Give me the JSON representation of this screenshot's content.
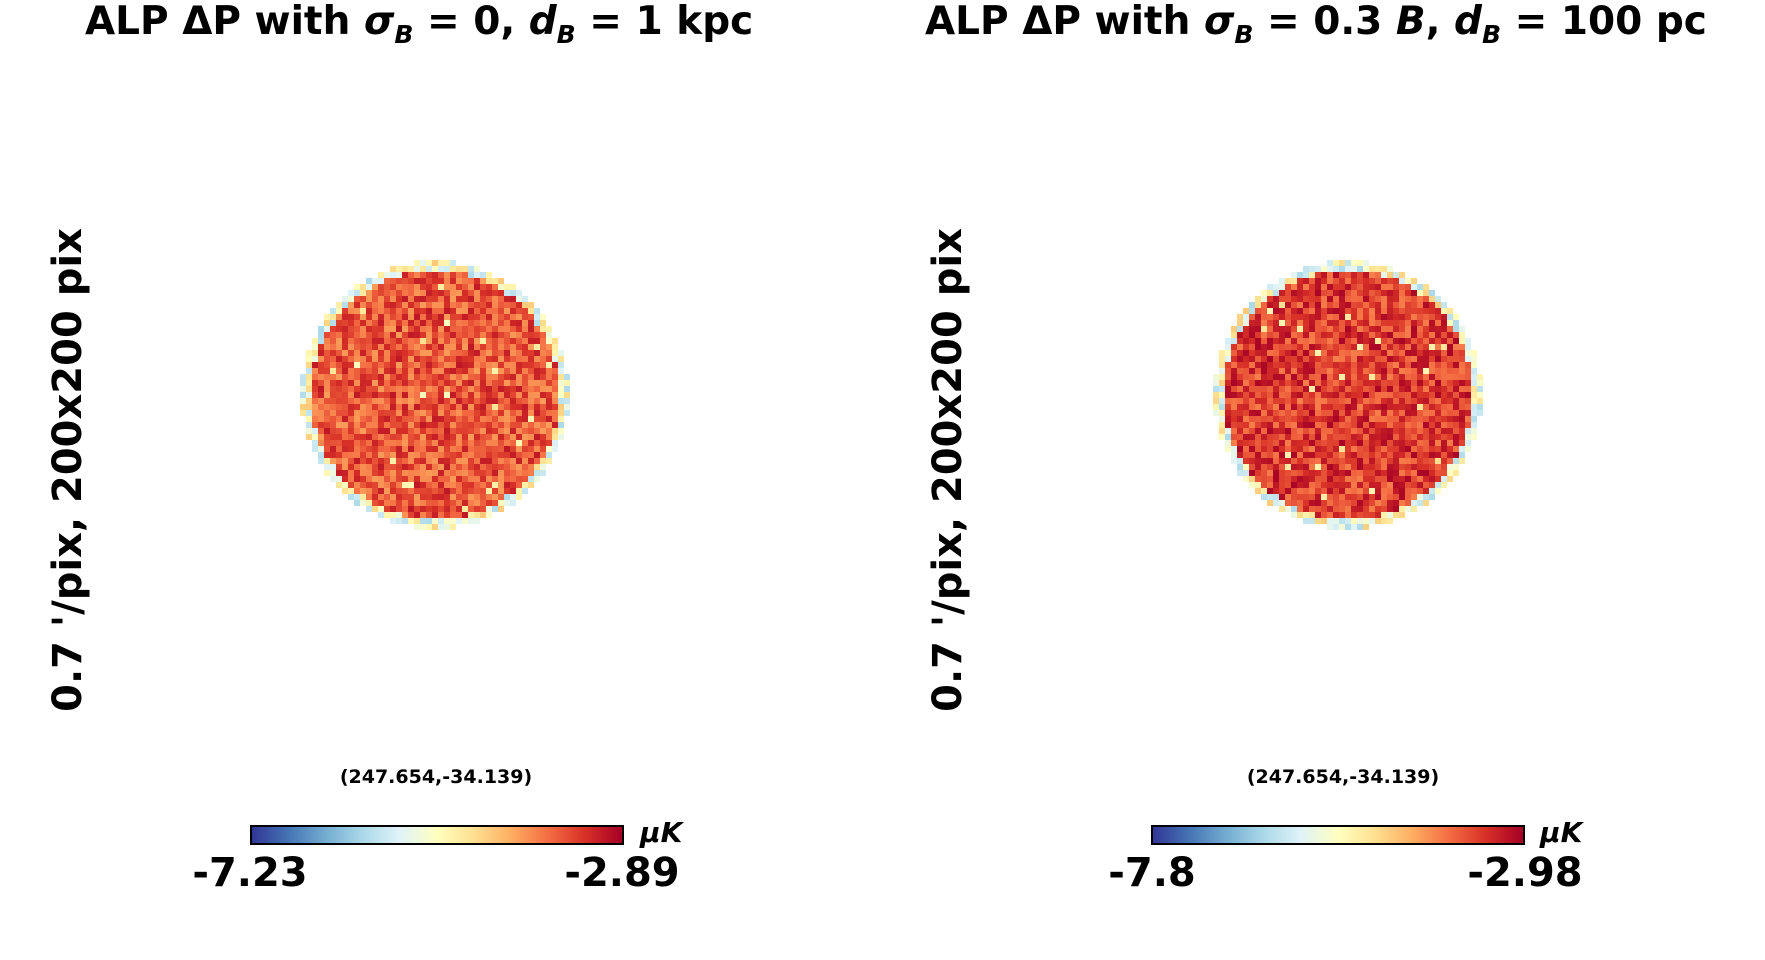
{
  "chart_data": [
    {
      "type": "heatmap",
      "title_prefix": "ALP ΔP with ",
      "sigma_sym": "σ",
      "sub_b": "B",
      "eq_text": " = 0, ",
      "d_sym": "d",
      "eq2_text": " = 1 ",
      "unit_text": "kpc",
      "ylabel": "0.7 '/pix,    200x200 pix",
      "coords": "(247.654,-34.139)",
      "colorbar": {
        "min_label": "-7.23",
        "max_label": "-2.89",
        "unit": "μK",
        "min": -7.23,
        "max": -2.89
      },
      "colormap": "RdYlBu_r",
      "typical_value": -3.6
    },
    {
      "type": "heatmap",
      "title_prefix": "ALP ΔP with ",
      "sigma_sym": "σ",
      "sub_b": "B",
      "eq_text": " = 0.3 ",
      "eq_b": "B",
      "eq_comma": ", ",
      "d_sym": "d",
      "eq2_text": " = 100 ",
      "unit_text": "pc",
      "ylabel": "0.7 '/pix,    200x200 pix",
      "coords": "(247.654,-34.139)",
      "colorbar": {
        "min_label": "-7.8",
        "max_label": "-2.98",
        "unit": "μK",
        "min": -7.8,
        "max": -2.98
      },
      "colormap": "RdYlBu_r",
      "typical_value": -3.55
    }
  ]
}
